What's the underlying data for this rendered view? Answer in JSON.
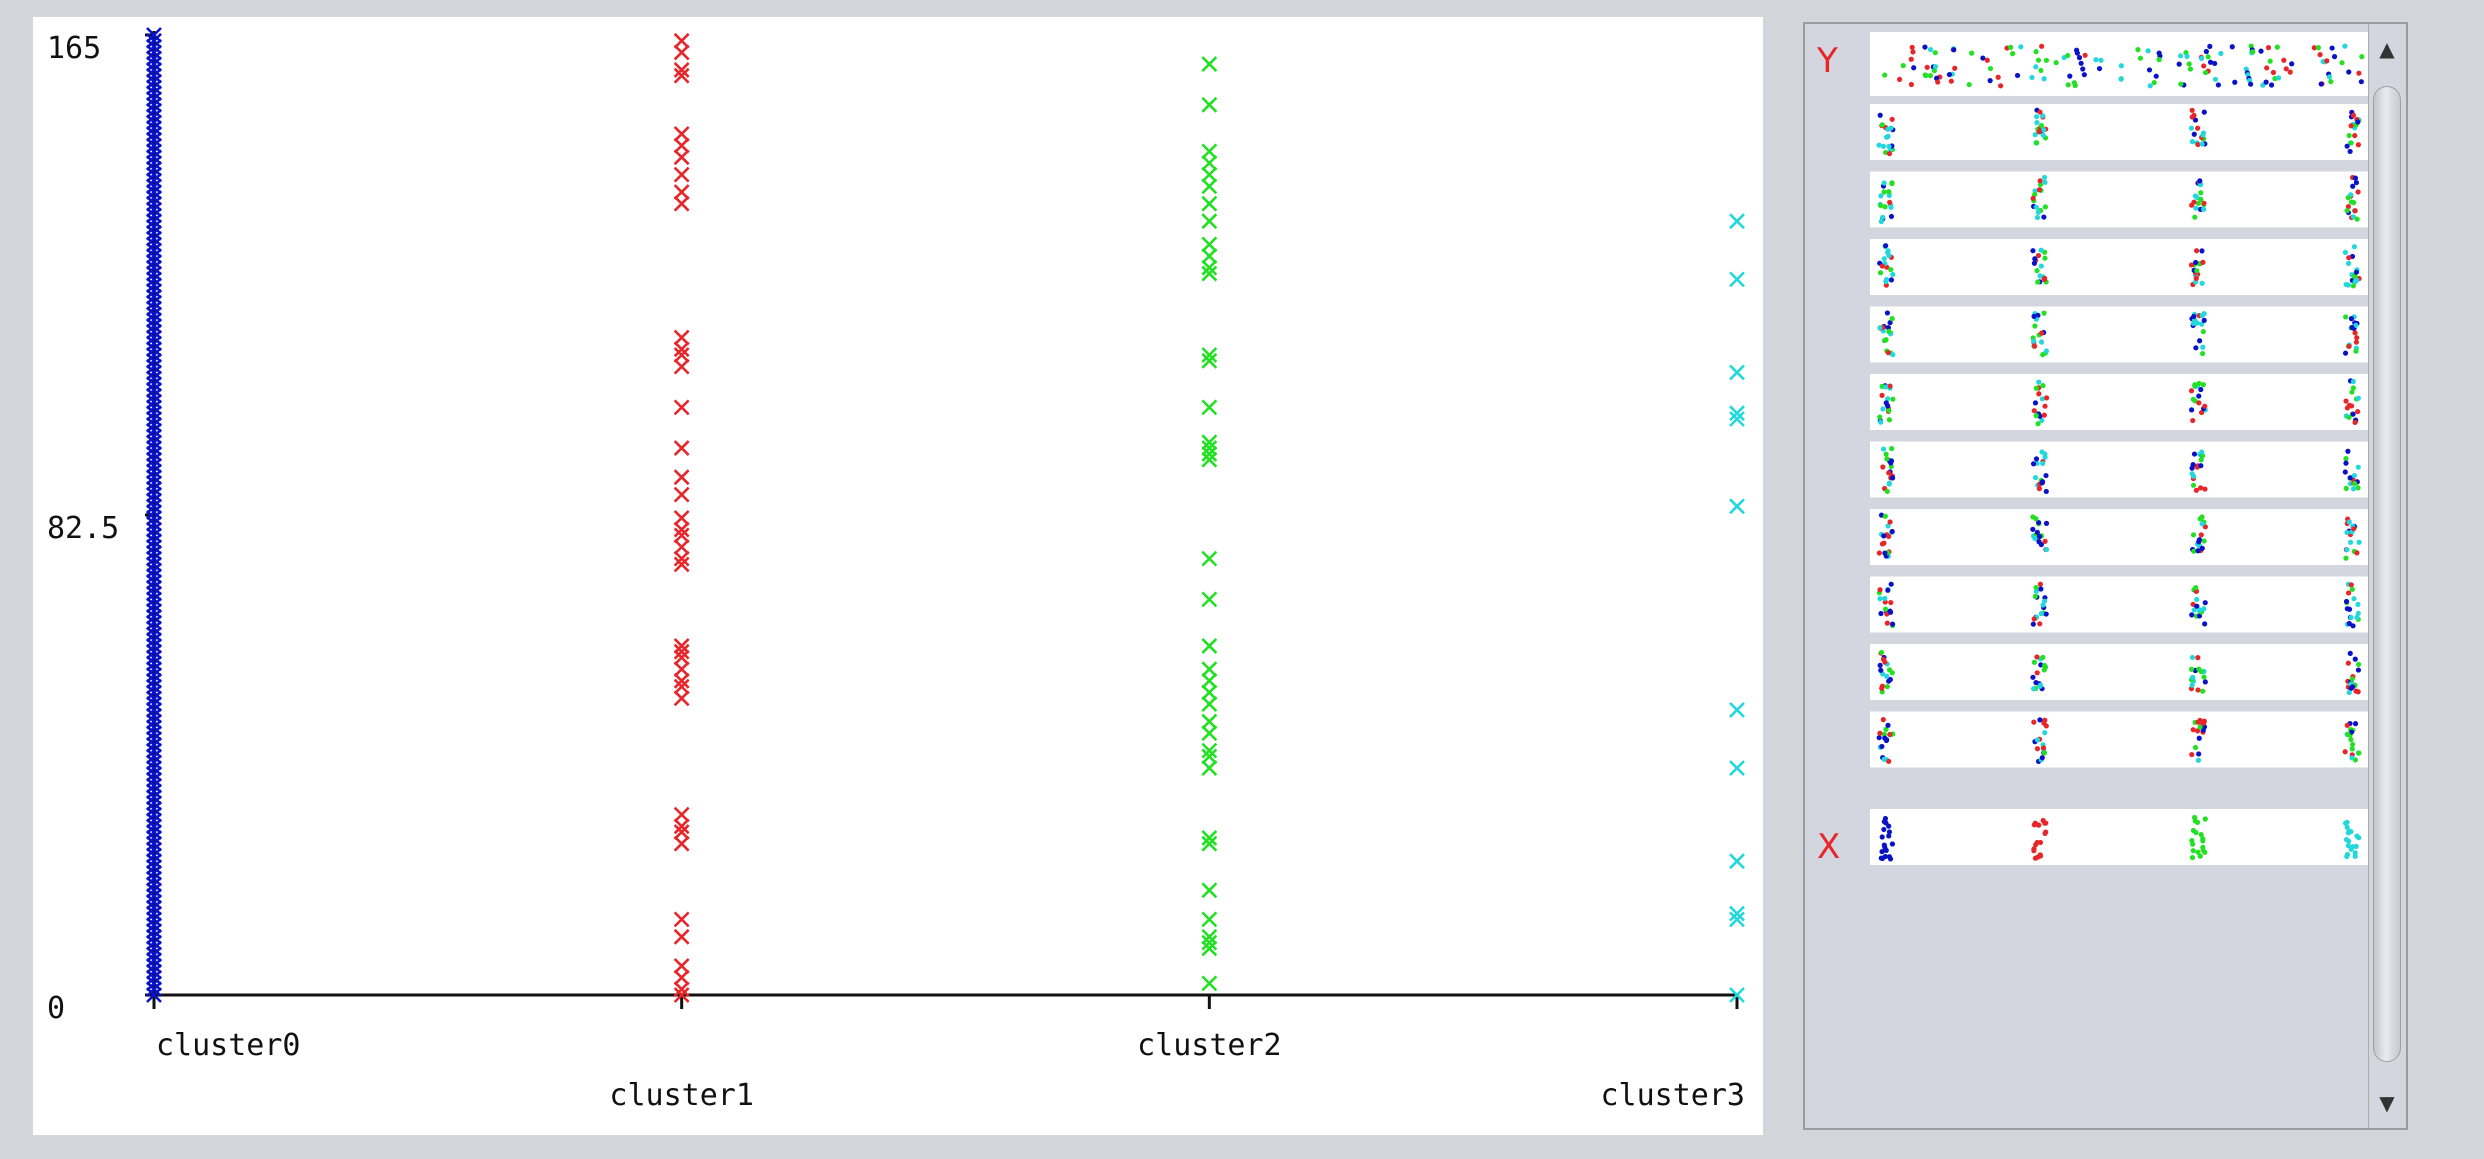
{
  "chart_data": {
    "type": "scatter",
    "title": "",
    "xlabel": "",
    "ylabel": "",
    "marker": "x",
    "categories": [
      "cluster0",
      "cluster1",
      "cluster2",
      "cluster3"
    ],
    "y_ticks": [
      "165",
      "82.5",
      "0"
    ],
    "ylim": [
      0,
      165
    ],
    "colors": [
      "#0a12c8",
      "#e8262a",
      "#22e022",
      "#22d8dc"
    ],
    "series": [
      {
        "category": "cluster0",
        "values": [
          0,
          1,
          2,
          3,
          4,
          5,
          6,
          7,
          8,
          9,
          10,
          11,
          12,
          13,
          14,
          15,
          16,
          17,
          18,
          19,
          20,
          21,
          22,
          23,
          24,
          25,
          26,
          27,
          28,
          29,
          30,
          31,
          32,
          33,
          34,
          35,
          36,
          37,
          38,
          39,
          40,
          41,
          42,
          43,
          44,
          45,
          46,
          47,
          48,
          49,
          50,
          51,
          52,
          53,
          54,
          55,
          56,
          57,
          58,
          59,
          60,
          61,
          62,
          63,
          64,
          65,
          66,
          67,
          68,
          69,
          70,
          71,
          72,
          73,
          74,
          75,
          76,
          77,
          78,
          79,
          80,
          81,
          82,
          83,
          84,
          85,
          86,
          87,
          88,
          89,
          90,
          91,
          92,
          93,
          94,
          95,
          96,
          97,
          98,
          99,
          100,
          101,
          102,
          103,
          104,
          105,
          106,
          107,
          108,
          109,
          110,
          111,
          112,
          113,
          114,
          115,
          116,
          117,
          118,
          119,
          120,
          121,
          122,
          123,
          124,
          125,
          126,
          127,
          128,
          129,
          130,
          131,
          132,
          133,
          134,
          135,
          136,
          137,
          138,
          139,
          140,
          141,
          142,
          143,
          144,
          145,
          146,
          147,
          148,
          149,
          150,
          151,
          152,
          153,
          154,
          155,
          156,
          157,
          158,
          159,
          160,
          161,
          162,
          163,
          164,
          165
        ]
      },
      {
        "category": "cluster1",
        "values": [
          0,
          1,
          3,
          5,
          10,
          13,
          26,
          28,
          29,
          31,
          51,
          53,
          54,
          56,
          58,
          59,
          60,
          74,
          75,
          77,
          79,
          80,
          82,
          86,
          89,
          94,
          101,
          108,
          110,
          111,
          113,
          136,
          138,
          141,
          144,
          146,
          148,
          158,
          159,
          162,
          164
        ]
      },
      {
        "category": "cluster2",
        "values": [
          2,
          8,
          9,
          10,
          13,
          18,
          26,
          27,
          39,
          41,
          42,
          45,
          47,
          50,
          52,
          54,
          56,
          60,
          68,
          75,
          92,
          93,
          94,
          95,
          101,
          109,
          110,
          124,
          125,
          127,
          129,
          133,
          136,
          139,
          141,
          143,
          145,
          153,
          160
        ]
      },
      {
        "category": "cluster3",
        "values": [
          0,
          13,
          14,
          23,
          39,
          49,
          84,
          99,
          100,
          107,
          123,
          133
        ]
      }
    ]
  },
  "side_panel": {
    "y_label": "Y",
    "x_label": "X",
    "scroll_up": "▲",
    "scroll_down": "▼"
  }
}
